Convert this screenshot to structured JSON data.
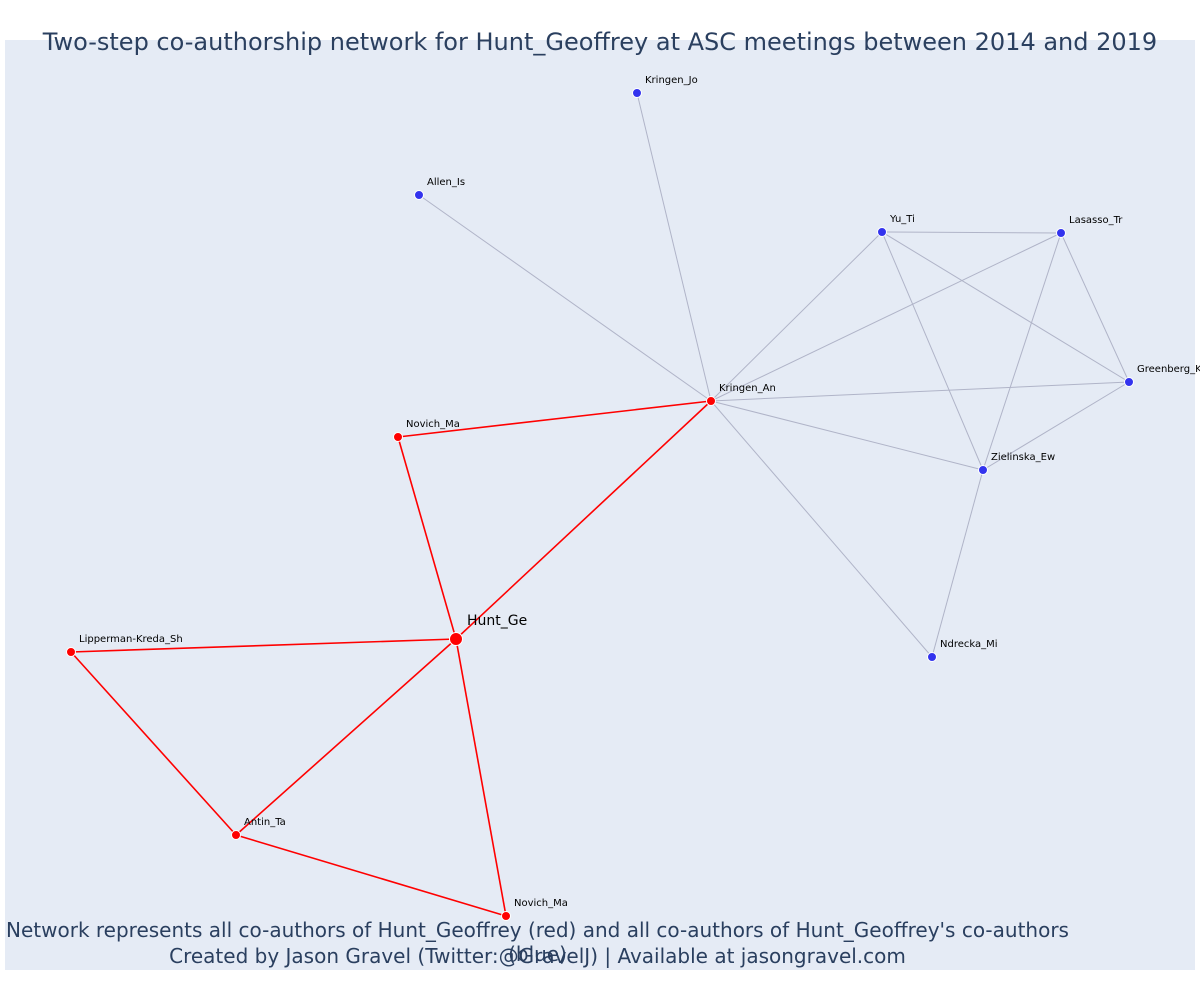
{
  "title": "Two-step co-authorship network for Hunt_Geoffrey at ASC meetings between 2014 and 2019",
  "footer": {
    "line1": "Network represents all co-authors of Hunt_Geoffrey (red) and all co-authors of Hunt_Geoffrey's co-authors (blue)",
    "line2": "Created by Jason Gravel (Twitter:@GravelJ) | Available at jasongravel.com"
  },
  "colors": {
    "background": "#e5ebf5",
    "direct": "#ff0000",
    "indirect": "#3333ee",
    "indirect_edge": "#b0b4c8"
  },
  "chart_data": {
    "type": "network",
    "title": "Two-step co-authorship network for Hunt_Geoffrey at ASC meetings between 2014 and 2019",
    "nodes": [
      {
        "id": "hunt",
        "label": "Hunt_Ge",
        "group": "ego"
      },
      {
        "id": "novich1",
        "label": "Novich_Ma",
        "group": "direct"
      },
      {
        "id": "kringen_an",
        "label": "Kringen_An",
        "group": "direct"
      },
      {
        "id": "lipperman",
        "label": "Lipperman-Kreda_Sh",
        "group": "direct"
      },
      {
        "id": "antin",
        "label": "Antin_Ta",
        "group": "direct"
      },
      {
        "id": "novich2",
        "label": "Novich_Ma",
        "group": "direct"
      },
      {
        "id": "kringen_jo",
        "label": "Kringen_Jo",
        "group": "indirect"
      },
      {
        "id": "allen",
        "label": "Allen_Is",
        "group": "indirect"
      },
      {
        "id": "yu",
        "label": "Yu_Ti",
        "group": "indirect"
      },
      {
        "id": "lasasso",
        "label": "Lasasso_Tr",
        "group": "indirect"
      },
      {
        "id": "greenberg",
        "label": "Greenberg_K",
        "group": "indirect"
      },
      {
        "id": "zielinska",
        "label": "Zielinska_Ew",
        "group": "indirect"
      },
      {
        "id": "ndrecka",
        "label": "Ndrecka_Mi",
        "group": "indirect"
      }
    ],
    "edges": [
      [
        "hunt",
        "novich1",
        "direct"
      ],
      [
        "hunt",
        "kringen_an",
        "direct"
      ],
      [
        "hunt",
        "lipperman",
        "direct"
      ],
      [
        "hunt",
        "antin",
        "direct"
      ],
      [
        "hunt",
        "novich2",
        "direct"
      ],
      [
        "novich1",
        "kringen_an",
        "direct"
      ],
      [
        "lipperman",
        "antin",
        "direct"
      ],
      [
        "antin",
        "novich2",
        "direct"
      ],
      [
        "kringen_an",
        "kringen_jo",
        "indirect"
      ],
      [
        "kringen_an",
        "allen",
        "indirect"
      ],
      [
        "kringen_an",
        "yu",
        "indirect"
      ],
      [
        "kringen_an",
        "lasasso",
        "indirect"
      ],
      [
        "kringen_an",
        "greenberg",
        "indirect"
      ],
      [
        "kringen_an",
        "zielinska",
        "indirect"
      ],
      [
        "kringen_an",
        "ndrecka",
        "indirect"
      ],
      [
        "yu",
        "lasasso",
        "indirect"
      ],
      [
        "yu",
        "greenberg",
        "indirect"
      ],
      [
        "yu",
        "zielinska",
        "indirect"
      ],
      [
        "lasasso",
        "greenberg",
        "indirect"
      ],
      [
        "lasasso",
        "zielinska",
        "indirect"
      ],
      [
        "greenberg",
        "zielinska",
        "indirect"
      ],
      [
        "zielinska",
        "ndrecka",
        "indirect"
      ]
    ]
  }
}
